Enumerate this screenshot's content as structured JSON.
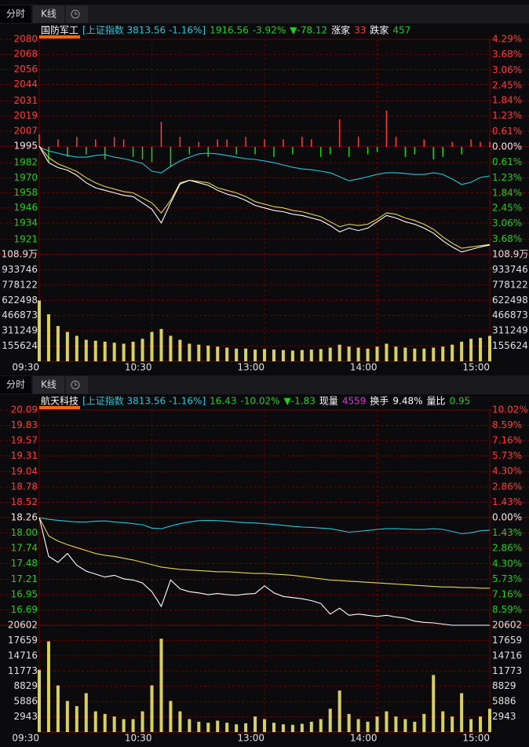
{
  "chart_data": [
    {
      "type": "intraday",
      "tabs": [
        "分时",
        "K线"
      ],
      "header": [
        {
          "text": "国防军工",
          "color": "#ffffff"
        },
        {
          "text": "[上证指数 3813.56 -1.16%]",
          "color": "#25c7d8"
        },
        {
          "text": "1916.56",
          "color": "#19d219"
        },
        {
          "text": "-3.92%",
          "color": "#19d219"
        },
        {
          "text": "▼-78.12",
          "color": "#19d219"
        },
        {
          "text": "涨家",
          "color": "#ffffff"
        },
        {
          "text": "33",
          "color": "#ff3b3b"
        },
        {
          "text": "跌家",
          "color": "#ffffff"
        },
        {
          "text": "457",
          "color": "#19d219"
        }
      ],
      "x": [
        0,
        5,
        10,
        15,
        20,
        25,
        30,
        35,
        40,
        45,
        50,
        55,
        60,
        65,
        70,
        75,
        80,
        85,
        90,
        95,
        100,
        105,
        110,
        115,
        120,
        125,
        130,
        135,
        140,
        145,
        150,
        155,
        160,
        165,
        170,
        175,
        180,
        185,
        190,
        195,
        200,
        205,
        210,
        215,
        220,
        225,
        230,
        235,
        240
      ],
      "xlim": [
        0,
        240
      ],
      "xticks": [
        {
          "value": 0,
          "label": "09:30"
        },
        {
          "value": 60,
          "label": "10:30"
        },
        {
          "value": 120,
          "label": "13:00"
        },
        {
          "value": 180,
          "label": "14:00"
        },
        {
          "value": 240,
          "label": "15:00"
        }
      ],
      "ylim": [
        1909,
        2080
      ],
      "yticks": [
        2080,
        2068,
        2056,
        2044,
        2031,
        2019,
        2007,
        1995,
        1982,
        1970,
        1958,
        1946,
        1934,
        1921
      ],
      "y2lim": [
        -4.29,
        4.29
      ],
      "y2ticks": [
        {
          "value": 4.29,
          "label": "4.29%"
        },
        {
          "value": 3.68,
          "label": "3.68%"
        },
        {
          "value": 3.06,
          "label": "3.06%"
        },
        {
          "value": 2.45,
          "label": "2.45%"
        },
        {
          "value": 1.84,
          "label": "1.84%"
        },
        {
          "value": 1.23,
          "label": "1.23%"
        },
        {
          "value": 0.61,
          "label": "0.61%"
        },
        {
          "value": 0,
          "label": "0.00%"
        },
        {
          "value": -0.61,
          "label": "0.61%"
        },
        {
          "value": -1.23,
          "label": "1.23%"
        },
        {
          "value": -1.84,
          "label": "1.84%"
        },
        {
          "value": -2.45,
          "label": "2.45%"
        },
        {
          "value": -3.06,
          "label": "3.06%"
        },
        {
          "value": -3.68,
          "label": "3.68%"
        }
      ],
      "series": [
        {
          "color": "#25c7d8",
          "axis": "y2",
          "values": [
            0,
            -0.16,
            -0.25,
            -0.34,
            -0.41,
            -0.41,
            -0.34,
            -0.31,
            -0.41,
            -0.47,
            -0.56,
            -0.66,
            -0.97,
            -1.03,
            -0.78,
            -0.56,
            -0.41,
            -0.28,
            -0.25,
            -0.28,
            -0.34,
            -0.41,
            -0.47,
            -0.5,
            -0.56,
            -0.63,
            -0.72,
            -0.81,
            -0.88,
            -0.91,
            -0.97,
            -1.03,
            -1.19,
            -1.35,
            -1.28,
            -1.19,
            -1.1,
            -1.03,
            -1.03,
            -1.06,
            -1.1,
            -1.1,
            -1.03,
            -1.1,
            -1.28,
            -1.5,
            -1.41,
            -1.22,
            -1.16
          ]
        },
        {
          "color": "#e8d44d",
          "values": [
            1995,
            1986,
            1981,
            1978,
            1975,
            1970,
            1966,
            1963,
            1961,
            1959,
            1958,
            1954,
            1950,
            1942,
            1952,
            1966,
            1968,
            1967,
            1966,
            1962,
            1960,
            1958,
            1955,
            1951,
            1949,
            1947,
            1946,
            1944,
            1943,
            1941,
            1939,
            1935,
            1931,
            1933,
            1932,
            1933,
            1937,
            1942,
            1941,
            1938,
            1936,
            1933,
            1929,
            1923,
            1918,
            1914,
            1915,
            1916,
            1917
          ]
        },
        {
          "color": "#ffffff",
          "values": [
            1995,
            1982,
            1978,
            1976,
            1972,
            1966,
            1962,
            1960,
            1958,
            1956,
            1955,
            1950,
            1945,
            1934,
            1950,
            1965,
            1968,
            1966,
            1964,
            1960,
            1957,
            1955,
            1952,
            1948,
            1946,
            1944,
            1943,
            1941,
            1940,
            1938,
            1936,
            1932,
            1927,
            1930,
            1928,
            1930,
            1935,
            1940,
            1938,
            1935,
            1933,
            1930,
            1926,
            1920,
            1915,
            1911,
            1913,
            1915,
            1916.56
          ]
        }
      ],
      "breadth": {
        "axis": "y2",
        "up_color": "#ff3b3b",
        "down_color": "#19d219",
        "values": [
          0.5,
          -0.6,
          0.3,
          -0.4,
          0.4,
          -0.3,
          0.3,
          -0.5,
          0.4,
          0.3,
          -0.4,
          -0.5,
          -0.6,
          1.0,
          -0.8,
          0.4,
          -0.3,
          0.2,
          -0.4,
          0.3,
          0.3,
          -0.3,
          0.4,
          -0.3,
          0.3,
          -0.4,
          0.3,
          -0.3,
          0.4,
          0.3,
          -0.4,
          -0.3,
          1.1,
          -0.4,
          0.4,
          -0.3,
          -0.2,
          1.45,
          0.4,
          -0.4,
          -0.3,
          0.3,
          -0.5,
          -0.4,
          0.2,
          -0.3,
          0.3,
          0.2,
          0.2
        ]
      },
      "volume": {
        "color": "#d8d060",
        "ylim": [
          0,
          1089368
        ],
        "yticks": [
          {
            "value": 1089368,
            "label": "108.9万"
          },
          933746,
          778122,
          622498,
          466873,
          311249,
          155624
        ],
        "values": [
          620000,
          480000,
          360000,
          300000,
          260000,
          220000,
          210000,
          200000,
          190000,
          180000,
          200000,
          230000,
          300000,
          330000,
          260000,
          220000,
          180000,
          170000,
          160000,
          150000,
          140000,
          130000,
          130000,
          120000,
          125000,
          120000,
          115000,
          110000,
          115000,
          120000,
          125000,
          140000,
          170000,
          150000,
          140000,
          130000,
          150000,
          180000,
          150000,
          140000,
          130000,
          130000,
          140000,
          150000,
          170000,
          200000,
          230000,
          240000,
          260000
        ]
      }
    },
    {
      "type": "intraday",
      "tabs": [
        "分时",
        "K线"
      ],
      "header": [
        {
          "text": "航天科技",
          "color": "#ffffff"
        },
        {
          "text": "[上证指数 3813.56 -1.16%]",
          "color": "#25c7d8"
        },
        {
          "text": "16.43",
          "color": "#19d219"
        },
        {
          "text": "-10.02%",
          "color": "#19d219"
        },
        {
          "text": "▼-1.83",
          "color": "#19d219"
        },
        {
          "text": "现量",
          "color": "#ffffff"
        },
        {
          "text": "4559",
          "color": "#d23ad2"
        },
        {
          "text": "换手",
          "color": "#ffffff"
        },
        {
          "text": "9.48%",
          "color": "#ffffff"
        },
        {
          "text": "量比",
          "color": "#ffffff"
        },
        {
          "text": "0.95",
          "color": "#19d219"
        }
      ],
      "x": [
        0,
        5,
        10,
        15,
        20,
        25,
        30,
        35,
        40,
        45,
        50,
        55,
        60,
        65,
        70,
        75,
        80,
        85,
        90,
        95,
        100,
        105,
        110,
        115,
        120,
        125,
        130,
        135,
        140,
        145,
        150,
        155,
        160,
        165,
        170,
        175,
        180,
        185,
        190,
        195,
        200,
        205,
        210,
        215,
        220,
        225,
        230,
        235,
        240
      ],
      "xlim": [
        0,
        240
      ],
      "xticks": [
        {
          "value": 0,
          "label": "09:30"
        },
        {
          "value": 60,
          "label": "10:30"
        },
        {
          "value": 120,
          "label": "13:00"
        },
        {
          "value": 180,
          "label": "14:00"
        },
        {
          "value": 240,
          "label": "15:00"
        }
      ],
      "ylim": [
        16.43,
        20.09
      ],
      "yticks": [
        20.09,
        19.83,
        19.57,
        19.31,
        19.04,
        18.78,
        18.52,
        18.26,
        {
          "value": 18,
          "label": "18.00"
        },
        17.74,
        17.48,
        17.21,
        16.95,
        16.69
      ],
      "y2lim": [
        -10.02,
        10.02
      ],
      "y2ticks": [
        {
          "value": 10.02,
          "label": "10.02%"
        },
        {
          "value": 8.59,
          "label": "8.59%"
        },
        {
          "value": 7.16,
          "label": "7.16%"
        },
        {
          "value": 5.73,
          "label": "5.73%"
        },
        {
          "value": 4.3,
          "label": "4.30%"
        },
        {
          "value": 2.86,
          "label": "2.86%"
        },
        {
          "value": 1.43,
          "label": "1.43%"
        },
        {
          "value": 0,
          "label": "0.00%"
        },
        {
          "value": -1.43,
          "label": "1.43%"
        },
        {
          "value": -2.86,
          "label": "2.86%"
        },
        {
          "value": -4.3,
          "label": "4.30%"
        },
        {
          "value": -5.73,
          "label": "5.73%"
        },
        {
          "value": -7.16,
          "label": "7.16%"
        },
        {
          "value": -8.59,
          "label": "8.59%"
        }
      ],
      "series": [
        {
          "color": "#25c7d8",
          "axis": "y2",
          "values": [
            0,
            -0.16,
            -0.25,
            -0.34,
            -0.41,
            -0.41,
            -0.34,
            -0.31,
            -0.41,
            -0.47,
            -0.56,
            -0.66,
            -0.97,
            -1.03,
            -0.78,
            -0.56,
            -0.41,
            -0.28,
            -0.25,
            -0.28,
            -0.34,
            -0.41,
            -0.47,
            -0.5,
            -0.56,
            -0.63,
            -0.72,
            -0.81,
            -0.88,
            -0.91,
            -0.97,
            -1.03,
            -1.19,
            -1.35,
            -1.28,
            -1.19,
            -1.1,
            -1.03,
            -1.03,
            -1.06,
            -1.1,
            -1.1,
            -1.03,
            -1.1,
            -1.28,
            -1.5,
            -1.41,
            -1.22,
            -1.16
          ]
        },
        {
          "color": "#e8d44d",
          "values": [
            18.26,
            17.95,
            17.86,
            17.8,
            17.75,
            17.7,
            17.65,
            17.62,
            17.6,
            17.57,
            17.54,
            17.5,
            17.46,
            17.42,
            17.4,
            17.38,
            17.37,
            17.36,
            17.35,
            17.34,
            17.34,
            17.33,
            17.32,
            17.31,
            17.31,
            17.3,
            17.29,
            17.28,
            17.26,
            17.24,
            17.22,
            17.2,
            17.19,
            17.18,
            17.17,
            17.16,
            17.15,
            17.14,
            17.13,
            17.12,
            17.11,
            17.1,
            17.09,
            17.08,
            17.08,
            17.07,
            17.07,
            17.06,
            17.06
          ]
        },
        {
          "color": "#ffffff",
          "values": [
            18.26,
            17.6,
            17.5,
            17.65,
            17.45,
            17.35,
            17.3,
            17.25,
            17.28,
            17.22,
            17.2,
            17.15,
            17.0,
            16.75,
            17.2,
            17.05,
            17.0,
            16.98,
            16.95,
            16.97,
            16.95,
            16.94,
            16.96,
            16.97,
            17.1,
            16.98,
            16.92,
            16.9,
            16.88,
            16.85,
            16.8,
            16.62,
            16.72,
            16.6,
            16.62,
            16.6,
            16.58,
            16.6,
            16.57,
            16.55,
            16.5,
            16.48,
            16.47,
            16.45,
            16.43,
            16.43,
            16.43,
            16.43,
            16.43
          ]
        }
      ],
      "volume": {
        "color": "#d8d060",
        "ylim": [
          0,
          20602
        ],
        "yticks": [
          20602,
          17659,
          14716,
          11773,
          8829,
          5886,
          2943
        ],
        "values": [
          12000,
          17500,
          9000,
          6000,
          5000,
          7500,
          4000,
          3500,
          3000,
          2500,
          2500,
          4000,
          9000,
          18000,
          6000,
          4000,
          2500,
          2000,
          1800,
          2200,
          1800,
          1500,
          1700,
          3000,
          2500,
          1800,
          1500,
          1400,
          1600,
          2000,
          2500,
          4500,
          8000,
          3500,
          2500,
          2000,
          3000,
          4000,
          3000,
          2500,
          2000,
          3500,
          11000,
          4000,
          3000,
          7500,
          2500,
          3000,
          4500
        ]
      }
    }
  ]
}
